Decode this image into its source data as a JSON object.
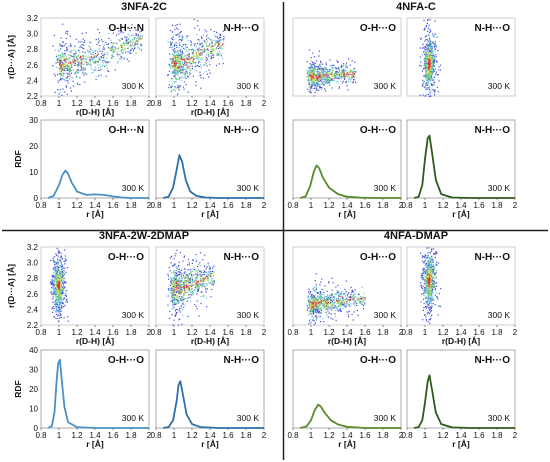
{
  "chart_data": [
    {
      "panel": "3NFA-2C",
      "title": "3NFA-2C",
      "sub": [
        {
          "type": "scatter",
          "label": "O-H···N",
          "temp": "300 K",
          "xlabel": "r(D-H) [Å]",
          "ylabel": "r(D···A) [Å]",
          "xlim": [
            0.8,
            2
          ],
          "ylim": [
            2.2,
            3.2
          ],
          "xticks": [
            "0.8",
            "1",
            "1.2",
            "1.4",
            "1.6",
            "1.8",
            "2"
          ],
          "yticks": [
            "2.2",
            "2.4",
            "2.6",
            "2.8",
            "3.0",
            "3.2"
          ],
          "distribution": {
            "shape": "banana",
            "min_x": 0.92,
            "max_x": 1.92,
            "center_x": 1.06,
            "center_y": 2.62,
            "spread_y": 0.22,
            "tail_end_y": 2.95
          }
        },
        {
          "type": "scatter",
          "label": "N-H···O",
          "temp": "300 K",
          "xlabel": "r(D-H) [Å]",
          "ylabel": "",
          "xlim": [
            0.8,
            2
          ],
          "ylim": [
            2.2,
            3.2
          ],
          "xticks": [
            "0.8",
            "1",
            "1.2",
            "1.4",
            "1.6",
            "1.8",
            "2"
          ],
          "yticks": [],
          "distribution": {
            "shape": "boomerang",
            "min_x": 0.9,
            "max_x": 1.55,
            "center_x": 1.06,
            "center_y": 2.62,
            "spread_y": 0.25,
            "tail_end_y": 2.9
          }
        },
        {
          "type": "line",
          "label": "O-H···N",
          "temp": "300 K",
          "xlabel": "r [Å]",
          "ylabel": "RDF",
          "xlim": [
            0.8,
            2
          ],
          "ylim": [
            0,
            30
          ],
          "xticks": [
            "0.8",
            "1",
            "1.2",
            "1.4",
            "1.6",
            "1.8",
            "2"
          ],
          "yticks": [
            "0",
            "10",
            "20",
            "30"
          ],
          "color": "#4a90c4",
          "x": [
            0.88,
            0.94,
            1.0,
            1.04,
            1.07,
            1.1,
            1.14,
            1.2,
            1.3,
            1.4,
            1.5,
            1.6,
            1.7,
            1.8,
            1.9,
            2.0
          ],
          "y": [
            0,
            0.8,
            5,
            9,
            10.5,
            9.5,
            6,
            2.5,
            1.2,
            1.4,
            1.2,
            0.6,
            0.2,
            0,
            0,
            0
          ]
        },
        {
          "type": "line",
          "label": "N-H···O",
          "temp": "300 K",
          "xlabel": "r [Å]",
          "ylabel": "",
          "xlim": [
            0.8,
            2
          ],
          "ylim": [
            0,
            30
          ],
          "xticks": [
            "0.8",
            "1",
            "1.2",
            "1.4",
            "1.6",
            "1.8",
            "2"
          ],
          "yticks": [],
          "color": "#2f6faa",
          "x": [
            0.88,
            0.94,
            0.99,
            1.03,
            1.06,
            1.09,
            1.13,
            1.18,
            1.25,
            1.35,
            1.5,
            1.7,
            2.0
          ],
          "y": [
            0,
            0.5,
            4,
            11,
            16.5,
            14,
            7,
            2.5,
            0.8,
            0.2,
            0,
            0,
            0
          ]
        }
      ]
    },
    {
      "panel": "4NFA-C",
      "title": "4NFA-C",
      "sub": [
        {
          "type": "scatter",
          "label": "O-H···O",
          "temp": "300 K",
          "xlabel": "",
          "ylabel": "",
          "xlim": [
            0.8,
            2
          ],
          "ylim": [
            2.2,
            3.2
          ],
          "xticks": [],
          "yticks": [],
          "distribution": {
            "shape": "blob",
            "min_x": 0.95,
            "max_x": 1.5,
            "center_x": 1.07,
            "center_y": 2.46,
            "spread_y": 0.12,
            "tail_end_y": 2.5
          }
        },
        {
          "type": "scatter",
          "label": "N-H···O",
          "temp": "300 K",
          "xlabel": "",
          "ylabel": "",
          "xlim": [
            0.8,
            2
          ],
          "ylim": [
            2.2,
            3.2
          ],
          "xticks": [],
          "yticks": [],
          "distribution": {
            "shape": "vertical",
            "min_x": 0.93,
            "max_x": 1.22,
            "center_x": 1.04,
            "center_y": 2.62,
            "spread_y": 0.22,
            "tail_end_y": 2.62
          }
        },
        {
          "type": "line",
          "label": "O-H···O",
          "temp": "300 K",
          "xlabel": "r [Å]",
          "ylabel": "",
          "xlim": [
            0.8,
            2
          ],
          "ylim": [
            0,
            30
          ],
          "xticks": [
            "0.8",
            "1",
            "1.2",
            "1.4",
            "1.6",
            "1.8",
            "2"
          ],
          "yticks": [],
          "color": "#5a8a2e",
          "x": [
            0.88,
            0.94,
            0.99,
            1.03,
            1.06,
            1.09,
            1.13,
            1.2,
            1.3,
            1.4,
            1.55,
            1.7,
            2.0
          ],
          "y": [
            0,
            0.6,
            4.5,
            10,
            12.5,
            11.5,
            8,
            4,
            1.5,
            0.5,
            0.1,
            0,
            0
          ]
        },
        {
          "type": "line",
          "label": "N-H···O",
          "temp": "300 K",
          "xlabel": "r [Å]",
          "ylabel": "",
          "xlim": [
            0.8,
            2
          ],
          "ylim": [
            0,
            30
          ],
          "xticks": [
            "0.8",
            "1",
            "1.2",
            "1.4",
            "1.6",
            "1.8",
            "2"
          ],
          "yticks": [],
          "color": "#2e5a1a",
          "x": [
            0.88,
            0.93,
            0.97,
            1.0,
            1.03,
            1.05,
            1.08,
            1.12,
            1.18,
            1.3,
            1.5,
            2.0
          ],
          "y": [
            0,
            0.5,
            5,
            15,
            23,
            24,
            17,
            7,
            1.5,
            0.2,
            0,
            0
          ]
        }
      ]
    },
    {
      "panel": "3NFA-2W-2DMAP",
      "title": "3NFA-2W-2DMAP",
      "sub": [
        {
          "type": "scatter",
          "label": "O-H···O",
          "temp": "300 K",
          "xlabel": "r(D-H) [Å]",
          "ylabel": "r(D···A) [Å]",
          "xlim": [
            0.8,
            2
          ],
          "ylim": [
            2.2,
            3.2
          ],
          "xticks": [
            "0.8",
            "1",
            "1.2",
            "1.4",
            "1.6",
            "1.8",
            "2"
          ],
          "yticks": [
            "2.2",
            "2.4",
            "2.6",
            "2.8",
            "3.0",
            "3.2"
          ],
          "distribution": {
            "shape": "vertical",
            "min_x": 0.9,
            "max_x": 1.1,
            "center_x": 0.99,
            "center_y": 2.72,
            "spread_y": 0.23,
            "tail_end_y": 2.72
          }
        },
        {
          "type": "scatter",
          "label": "N-H···O",
          "temp": "300 K",
          "xlabel": "r(D-H) [Å]",
          "ylabel": "",
          "xlim": [
            0.8,
            2
          ],
          "ylim": [
            2.2,
            3.2
          ],
          "xticks": [
            "0.8",
            "1",
            "1.2",
            "1.4",
            "1.6",
            "1.8",
            "2"
          ],
          "yticks": [],
          "distribution": {
            "shape": "boomerang",
            "min_x": 0.92,
            "max_x": 1.45,
            "center_x": 1.06,
            "center_y": 2.68,
            "spread_y": 0.23,
            "tail_end_y": 2.85
          }
        },
        {
          "type": "line",
          "label": "O-H···O",
          "temp": "300 K",
          "xlabel": "r [Å]",
          "ylabel": "RDF",
          "xlim": [
            0.8,
            2
          ],
          "ylim": [
            0,
            40
          ],
          "xticks": [
            "0.8",
            "1",
            "1.2",
            "1.4",
            "1.6",
            "1.8",
            "2"
          ],
          "yticks": [
            "0",
            "10",
            "20",
            "30",
            "40"
          ],
          "color": "#4a90c4",
          "x": [
            0.88,
            0.92,
            0.95,
            0.97,
            0.99,
            1.01,
            1.03,
            1.06,
            1.1,
            1.2,
            1.4,
            2.0
          ],
          "y": [
            0,
            1,
            8,
            22,
            33,
            35,
            25,
            11,
            3,
            0.4,
            0,
            0
          ]
        },
        {
          "type": "line",
          "label": "N-H···O",
          "temp": "300 K",
          "xlabel": "r [Å]",
          "ylabel": "",
          "xlim": [
            0.8,
            2
          ],
          "ylim": [
            0,
            40
          ],
          "xticks": [
            "0.8",
            "1",
            "1.2",
            "1.4",
            "1.6",
            "1.8",
            "2"
          ],
          "yticks": [],
          "color": "#2f6faa",
          "x": [
            0.88,
            0.94,
            0.99,
            1.03,
            1.05,
            1.07,
            1.1,
            1.14,
            1.2,
            1.3,
            1.5,
            2.0
          ],
          "y": [
            0,
            0.5,
            4,
            14,
            22,
            24,
            17,
            7,
            2,
            0.4,
            0,
            0
          ]
        }
      ]
    },
    {
      "panel": "4NFA-DMAP",
      "title": "4NFA-DMAP",
      "sub": [
        {
          "type": "scatter",
          "label": "O-H···O",
          "temp": "300 K",
          "xlabel": "r(D-H) [Å]",
          "ylabel": "",
          "xlim": [
            0.8,
            2
          ],
          "ylim": [
            2.2,
            3.2
          ],
          "xticks": [
            "0.8",
            "1",
            "1.2",
            "1.4",
            "1.6",
            "1.8",
            "2"
          ],
          "yticks": [],
          "distribution": {
            "shape": "blob",
            "min_x": 0.95,
            "max_x": 1.6,
            "center_x": 1.08,
            "center_y": 2.47,
            "spread_y": 0.13,
            "tail_end_y": 2.55
          }
        },
        {
          "type": "scatter",
          "label": "N-H···O",
          "temp": "300 K",
          "xlabel": "r(D-H) [Å]",
          "ylabel": "",
          "xlim": [
            0.8,
            2
          ],
          "ylim": [
            2.2,
            3.2
          ],
          "xticks": [
            "0.8",
            "1",
            "1.2",
            "1.4",
            "1.6",
            "1.8",
            "2"
          ],
          "yticks": [],
          "distribution": {
            "shape": "vertical",
            "min_x": 0.92,
            "max_x": 1.22,
            "center_x": 1.04,
            "center_y": 2.78,
            "spread_y": 0.25,
            "tail_end_y": 2.78
          }
        },
        {
          "type": "line",
          "label": "O-H···O",
          "temp": "300 K",
          "xlabel": "r [Å]",
          "ylabel": "",
          "xlim": [
            0.8,
            2
          ],
          "ylim": [
            0,
            40
          ],
          "xticks": [
            "0.8",
            "1",
            "1.2",
            "1.4",
            "1.6",
            "1.8",
            "2"
          ],
          "yticks": [],
          "color": "#5a8a2e",
          "x": [
            0.88,
            0.95,
            1.0,
            1.04,
            1.08,
            1.11,
            1.15,
            1.22,
            1.3,
            1.4,
            1.6,
            2.0
          ],
          "y": [
            0,
            0.8,
            4,
            9,
            12,
            11,
            8,
            4,
            1.8,
            0.6,
            0,
            0
          ]
        },
        {
          "type": "line",
          "label": "N-H···O",
          "temp": "300 K",
          "xlabel": "r [Å]",
          "ylabel": "",
          "xlim": [
            0.8,
            2
          ],
          "ylim": [
            0,
            40
          ],
          "xticks": [
            "0.8",
            "1",
            "1.2",
            "1.4",
            "1.6",
            "1.8",
            "2"
          ],
          "yticks": [],
          "color": "#2e5a1a",
          "x": [
            0.88,
            0.93,
            0.97,
            1.0,
            1.03,
            1.05,
            1.08,
            1.12,
            1.18,
            1.3,
            1.5,
            2.0
          ],
          "y": [
            0,
            0.5,
            4,
            13,
            24,
            27,
            19,
            8,
            2,
            0.3,
            0,
            0
          ]
        }
      ]
    }
  ]
}
